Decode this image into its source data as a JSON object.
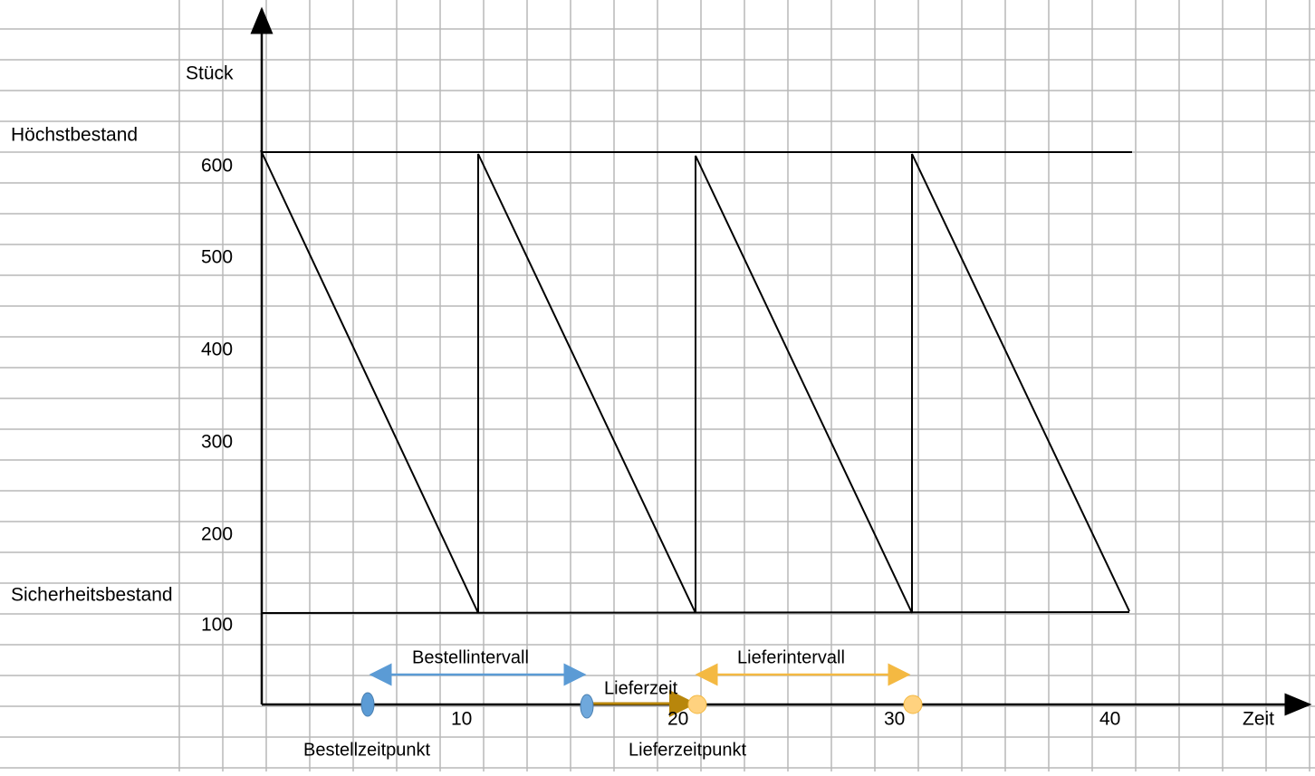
{
  "y_axis": {
    "label": "Stück",
    "ticks": [
      "600",
      "500",
      "400",
      "300",
      "200",
      "100"
    ]
  },
  "levels": {
    "max": "Höchstbestand",
    "safety": "Sicherheitsbestand"
  },
  "x_axis": {
    "label": "Zeit",
    "ticks": [
      "10",
      "20",
      "30",
      "40"
    ]
  },
  "annotations": {
    "order_interval": "Bestellintervall",
    "lead_time": "Lieferzeit",
    "delivery_interval": "Lieferintervall",
    "order_point": "Bestellzeitpunkt",
    "delivery_point": "Lieferzeitpunkt"
  }
}
